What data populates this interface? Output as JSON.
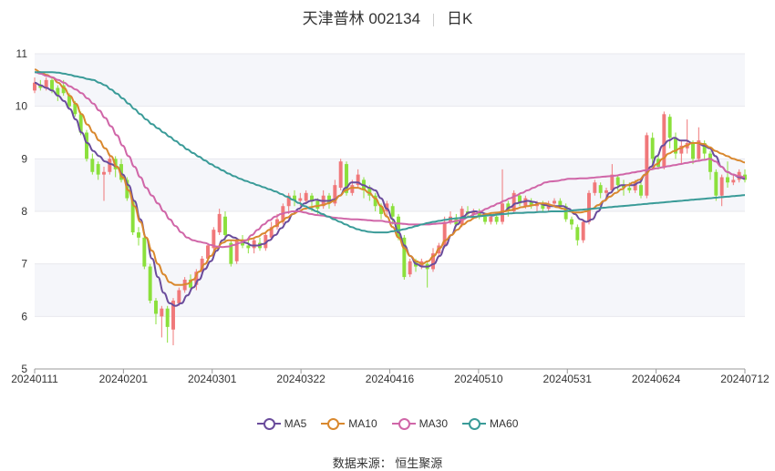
{
  "title": {
    "name": "天津普林 002134",
    "period": "日K"
  },
  "source": "数据来源： 恒生聚源",
  "colors": {
    "up": "#f0787a",
    "down": "#8be03c",
    "grid": "#e8e8ee",
    "band": "#f5f6fa"
  },
  "chart_data": {
    "type": "candlestick",
    "x_tick_labels": [
      "20240111",
      "20240201",
      "20240301",
      "20240322",
      "20240416",
      "20240510",
      "20240531",
      "20240624",
      "20240712"
    ],
    "y_tick_labels": [
      "5",
      "6",
      "7",
      "8",
      "9",
      "10",
      "11"
    ],
    "ylim": [
      5,
      11
    ],
    "grid": true,
    "legend_position": "bottom",
    "candles": [
      [
        10.3,
        10.45,
        10.55,
        10.25
      ],
      [
        10.4,
        10.35,
        10.5,
        10.3
      ],
      [
        10.35,
        10.5,
        10.55,
        10.3
      ],
      [
        10.5,
        10.3,
        10.55,
        10.25
      ],
      [
        10.35,
        10.2,
        10.4,
        10.1
      ],
      [
        10.4,
        10.25,
        10.5,
        10.2
      ],
      [
        10.2,
        10.0,
        10.25,
        9.95
      ],
      [
        10.05,
        9.85,
        10.1,
        9.8
      ],
      [
        9.85,
        9.5,
        9.9,
        9.45
      ],
      [
        9.5,
        9.0,
        9.55,
        8.95
      ],
      [
        9.0,
        8.75,
        9.1,
        8.7
      ],
      [
        8.9,
        8.7,
        8.95,
        8.6
      ],
      [
        8.7,
        8.75,
        8.85,
        8.2
      ],
      [
        8.75,
        9.0,
        9.1,
        8.7
      ],
      [
        9.0,
        8.8,
        9.05,
        8.65
      ],
      [
        8.9,
        8.6,
        9.0,
        8.55
      ],
      [
        8.6,
        8.25,
        8.65,
        8.2
      ],
      [
        8.2,
        7.6,
        8.25,
        7.55
      ],
      [
        7.6,
        7.5,
        7.7,
        7.35
      ],
      [
        7.5,
        6.95,
        7.55,
        6.9
      ],
      [
        6.95,
        6.3,
        7.0,
        6.25
      ],
      [
        6.3,
        6.05,
        6.35,
        5.85
      ],
      [
        6.0,
        6.15,
        6.2,
        5.6
      ],
      [
        6.15,
        5.8,
        6.2,
        5.5
      ],
      [
        5.75,
        6.3,
        6.35,
        5.45
      ],
      [
        6.25,
        6.5,
        6.55,
        6.2
      ],
      [
        6.5,
        6.7,
        6.75,
        6.45
      ],
      [
        6.7,
        6.55,
        6.8,
        6.5
      ],
      [
        6.6,
        6.85,
        6.9,
        6.5
      ],
      [
        6.85,
        7.1,
        7.15,
        6.8
      ],
      [
        7.1,
        7.35,
        7.4,
        7.05
      ],
      [
        7.3,
        7.65,
        7.7,
        7.25
      ],
      [
        7.6,
        7.95,
        8.05,
        7.55
      ],
      [
        7.9,
        7.55,
        8.0,
        7.4
      ],
      [
        7.4,
        7.0,
        7.45,
        6.95
      ],
      [
        7.05,
        7.45,
        7.5,
        7.0
      ],
      [
        7.4,
        7.35,
        7.55,
        7.3
      ],
      [
        7.35,
        7.3,
        7.45,
        7.2
      ],
      [
        7.3,
        7.45,
        7.5,
        7.2
      ],
      [
        7.4,
        7.3,
        7.5,
        7.25
      ],
      [
        7.3,
        7.55,
        7.6,
        7.25
      ],
      [
        7.5,
        7.7,
        7.8,
        7.45
      ],
      [
        7.7,
        7.85,
        7.95,
        7.65
      ],
      [
        7.8,
        8.1,
        8.15,
        7.75
      ],
      [
        8.1,
        8.3,
        8.35,
        7.95
      ],
      [
        8.3,
        8.2,
        8.4,
        8.1
      ],
      [
        8.2,
        8.25,
        8.35,
        8.1
      ],
      [
        8.2,
        8.35,
        8.4,
        8.15
      ],
      [
        8.3,
        8.2,
        8.35,
        8.0
      ],
      [
        8.2,
        8.05,
        8.25,
        7.95
      ],
      [
        8.1,
        8.3,
        8.4,
        8.05
      ],
      [
        8.3,
        8.15,
        8.35,
        8.05
      ],
      [
        8.15,
        8.5,
        8.6,
        8.1
      ],
      [
        8.45,
        8.95,
        9.0,
        8.4
      ],
      [
        8.9,
        8.35,
        8.95,
        8.3
      ],
      [
        8.35,
        8.5,
        8.6,
        8.3
      ],
      [
        8.5,
        8.7,
        8.8,
        8.45
      ],
      [
        8.6,
        8.4,
        8.65,
        8.25
      ],
      [
        8.45,
        8.3,
        8.5,
        8.2
      ],
      [
        8.3,
        8.1,
        8.35,
        8.0
      ],
      [
        8.1,
        7.95,
        8.15,
        7.85
      ],
      [
        8.0,
        8.15,
        8.2,
        7.9
      ],
      [
        8.1,
        7.9,
        8.15,
        7.75
      ],
      [
        7.9,
        7.5,
        7.95,
        7.45
      ],
      [
        7.5,
        6.75,
        7.55,
        6.7
      ],
      [
        6.8,
        7.05,
        7.1,
        6.75
      ],
      [
        7.05,
        6.95,
        7.1,
        6.85
      ],
      [
        6.95,
        7.05,
        7.1,
        6.9
      ],
      [
        7.0,
        6.9,
        7.05,
        6.55
      ],
      [
        6.9,
        7.2,
        7.3,
        6.85
      ],
      [
        7.2,
        7.35,
        7.4,
        7.15
      ],
      [
        7.35,
        7.8,
        7.9,
        7.3
      ],
      [
        7.8,
        7.9,
        8.0,
        7.75
      ],
      [
        7.85,
        7.75,
        7.95,
        7.7
      ],
      [
        7.75,
        8.05,
        8.1,
        7.7
      ],
      [
        8.0,
        7.95,
        8.1,
        7.9
      ],
      [
        7.95,
        8.0,
        8.05,
        7.85
      ],
      [
        8.0,
        7.9,
        8.05,
        7.85
      ],
      [
        7.9,
        7.8,
        7.95,
        7.75
      ],
      [
        7.8,
        7.9,
        7.95,
        7.75
      ],
      [
        7.9,
        7.8,
        7.95,
        7.75
      ],
      [
        7.8,
        8.15,
        8.8,
        7.75
      ],
      [
        8.15,
        8.0,
        8.2,
        7.9
      ],
      [
        8.0,
        8.35,
        8.4,
        7.95
      ],
      [
        8.3,
        8.15,
        8.35,
        8.1
      ],
      [
        8.1,
        8.25,
        8.3,
        8.05
      ],
      [
        8.2,
        8.1,
        8.25,
        8.05
      ],
      [
        8.1,
        8.15,
        8.2,
        8.0
      ],
      [
        8.15,
        8.05,
        8.2,
        8.0
      ],
      [
        8.05,
        8.15,
        8.2,
        8.0
      ],
      [
        8.15,
        8.2,
        8.25,
        8.1
      ],
      [
        8.2,
        8.1,
        8.25,
        8.05
      ],
      [
        8.1,
        7.85,
        8.15,
        7.8
      ],
      [
        7.85,
        7.75,
        7.9,
        7.65
      ],
      [
        7.7,
        7.45,
        7.75,
        7.35
      ],
      [
        7.45,
        7.8,
        7.85,
        7.4
      ],
      [
        7.8,
        8.35,
        8.4,
        7.75
      ],
      [
        8.35,
        8.55,
        8.6,
        8.3
      ],
      [
        8.5,
        8.35,
        8.55,
        8.25
      ],
      [
        8.35,
        8.4,
        8.45,
        8.2
      ],
      [
        8.4,
        8.7,
        8.9,
        8.35
      ],
      [
        8.65,
        8.5,
        8.7,
        8.4
      ],
      [
        8.5,
        8.45,
        8.6,
        8.3
      ],
      [
        8.45,
        8.4,
        8.55,
        8.35
      ],
      [
        8.4,
        8.55,
        8.6,
        8.35
      ],
      [
        8.5,
        8.3,
        8.55,
        8.25
      ],
      [
        8.3,
        9.45,
        9.5,
        8.25
      ],
      [
        9.4,
        9.0,
        9.5,
        8.9
      ],
      [
        9.0,
        8.85,
        9.1,
        8.8
      ],
      [
        8.85,
        9.85,
        9.9,
        8.8
      ],
      [
        9.8,
        9.4,
        9.85,
        9.2
      ],
      [
        9.4,
        9.1,
        9.5,
        9.0
      ],
      [
        9.1,
        9.25,
        9.35,
        8.9
      ],
      [
        9.2,
        9.3,
        9.75,
        9.1
      ],
      [
        9.3,
        9.0,
        9.35,
        8.9
      ],
      [
        9.0,
        9.35,
        9.6,
        8.95
      ],
      [
        9.3,
        9.1,
        9.35,
        9.0
      ],
      [
        9.1,
        8.75,
        9.15,
        8.6
      ],
      [
        8.75,
        8.3,
        8.8,
        8.2
      ],
      [
        8.3,
        8.65,
        8.7,
        8.1
      ],
      [
        8.65,
        8.55,
        8.95,
        8.45
      ],
      [
        8.55,
        8.6,
        8.7,
        8.5
      ],
      [
        8.6,
        8.75,
        8.8,
        8.55
      ],
      [
        8.7,
        8.6,
        8.8,
        8.55
      ]
    ],
    "series": [
      {
        "name": "MA5",
        "color": "#6a4c9c",
        "values": [
          10.45,
          10.4,
          10.35,
          10.3,
          10.2,
          10.1,
          9.95,
          9.75,
          9.5,
          9.3,
          9.15,
          9.05,
          8.95,
          8.9,
          8.85,
          8.7,
          8.5,
          8.2,
          7.85,
          7.5,
          7.1,
          6.75,
          6.45,
          6.25,
          6.2,
          6.25,
          6.4,
          6.55,
          6.7,
          6.9,
          7.05,
          7.25,
          7.45,
          7.55,
          7.5,
          7.45,
          7.4,
          7.35,
          7.35,
          7.38,
          7.45,
          7.55,
          7.68,
          7.8,
          7.95,
          8.05,
          8.15,
          8.2,
          8.22,
          8.2,
          8.2,
          8.22,
          8.3,
          8.45,
          8.55,
          8.55,
          8.5,
          8.45,
          8.4,
          8.25,
          8.05,
          7.85,
          7.6,
          7.35,
          7.15,
          7.0,
          6.95,
          6.95,
          7.0,
          7.15,
          7.35,
          7.55,
          7.75,
          7.9,
          7.98,
          8.0,
          7.98,
          7.95,
          7.92,
          7.95,
          8.0,
          8.08,
          8.15,
          8.18,
          8.2,
          8.18,
          8.15,
          8.12,
          8.1,
          8.1,
          8.1,
          8.05,
          7.95,
          7.85,
          7.8,
          7.85,
          8.0,
          8.2,
          8.35,
          8.45,
          8.5,
          8.5,
          8.5,
          8.55,
          8.7,
          8.85,
          9.05,
          9.25,
          9.35,
          9.4,
          9.35,
          9.35,
          9.3,
          9.3,
          9.25,
          9.2,
          9.05,
          8.85,
          8.75,
          8.7,
          8.65,
          8.62
        ]
      },
      {
        "name": "MA10",
        "color": "#d9882e",
        "values": [
          10.7,
          10.65,
          10.6,
          10.55,
          10.45,
          10.35,
          10.2,
          10.05,
          9.85,
          9.65,
          9.5,
          9.35,
          9.2,
          9.05,
          8.85,
          8.65,
          8.4,
          8.1,
          7.8,
          7.5,
          7.25,
          7.0,
          6.8,
          6.65,
          6.6,
          6.6,
          6.62,
          6.7,
          6.85,
          7.0,
          7.15,
          7.3,
          7.4,
          7.45,
          7.45,
          7.45,
          7.45,
          7.48,
          7.52,
          7.58,
          7.65,
          7.72,
          7.8,
          7.88,
          7.95,
          8.0,
          8.05,
          8.08,
          8.1,
          8.12,
          8.15,
          8.2,
          8.3,
          8.4,
          8.45,
          8.45,
          8.42,
          8.35,
          8.25,
          8.1,
          7.9,
          7.7,
          7.5,
          7.3,
          7.15,
          7.05,
          7.0,
          7.05,
          7.15,
          7.3,
          7.45,
          7.55,
          7.65,
          7.75,
          7.82,
          7.88,
          7.92,
          7.95,
          7.97,
          7.98,
          8.0,
          8.02,
          8.05,
          8.08,
          8.1,
          8.12,
          8.15,
          8.15,
          8.12,
          8.08,
          8.05,
          8.0,
          7.98,
          7.98,
          8.0,
          8.05,
          8.12,
          8.2,
          8.28,
          8.35,
          8.42,
          8.5,
          8.55,
          8.6,
          8.7,
          8.8,
          8.9,
          9.0,
          9.1,
          9.15,
          9.2,
          9.25,
          9.3,
          9.3,
          9.28,
          9.22,
          9.15,
          9.1,
          9.05,
          9.0,
          8.97,
          8.93
        ]
      },
      {
        "name": "MA30",
        "color": "#d066a8",
        "values": [
          10.65,
          10.62,
          10.58,
          10.55,
          10.5,
          10.45,
          10.38,
          10.32,
          10.25,
          10.15,
          10.05,
          9.92,
          9.78,
          9.62,
          9.45,
          9.25,
          9.05,
          8.85,
          8.65,
          8.45,
          8.3,
          8.15,
          8.0,
          7.85,
          7.72,
          7.6,
          7.5,
          7.45,
          7.42,
          7.4,
          7.36,
          7.33,
          7.32,
          7.33,
          7.36,
          7.4,
          7.45,
          7.55,
          7.65,
          7.75,
          7.83,
          7.9,
          7.95,
          7.98,
          8.0,
          8.0,
          7.98,
          7.95,
          7.93,
          7.92,
          7.9,
          7.88,
          7.87,
          7.86,
          7.85,
          7.85,
          7.84,
          7.83,
          7.82,
          7.82,
          7.8,
          7.78,
          7.77,
          7.76,
          7.75,
          7.75,
          7.75,
          7.75,
          7.76,
          7.77,
          7.78,
          7.8,
          7.82,
          7.85,
          7.9,
          7.95,
          8.0,
          8.05,
          8.1,
          8.15,
          8.2,
          8.25,
          8.3,
          8.35,
          8.4,
          8.45,
          8.5,
          8.55,
          8.57,
          8.58,
          8.6,
          8.62,
          8.62,
          8.63,
          8.63,
          8.64,
          8.65,
          8.66,
          8.67,
          8.68,
          8.7,
          8.72,
          8.74,
          8.76,
          8.78,
          8.8,
          8.82,
          8.84,
          8.86,
          8.88,
          8.9,
          8.92,
          8.94,
          8.96,
          8.98,
          9.0,
          8.95,
          8.85,
          8.75,
          8.7,
          8.67,
          8.65
        ]
      },
      {
        "name": "MA60",
        "color": "#3a9b98",
        "values": [
          10.65,
          10.65,
          10.65,
          10.65,
          10.64,
          10.62,
          10.6,
          10.57,
          10.55,
          10.52,
          10.5,
          10.45,
          10.4,
          10.32,
          10.24,
          10.15,
          10.05,
          9.95,
          9.85,
          9.75,
          9.66,
          9.58,
          9.5,
          9.42,
          9.34,
          9.26,
          9.18,
          9.11,
          9.04,
          8.97,
          8.9,
          8.84,
          8.78,
          8.72,
          8.67,
          8.62,
          8.58,
          8.54,
          8.5,
          8.46,
          8.42,
          8.38,
          8.33,
          8.28,
          8.22,
          8.16,
          8.1,
          8.05,
          8.0,
          7.95,
          7.9,
          7.85,
          7.8,
          7.75,
          7.7,
          7.66,
          7.63,
          7.61,
          7.6,
          7.6,
          7.6,
          7.62,
          7.64,
          7.66,
          7.69,
          7.72,
          7.75,
          7.78,
          7.8,
          7.82,
          7.84,
          7.86,
          7.87,
          7.88,
          7.89,
          7.9,
          7.91,
          7.92,
          7.93,
          7.94,
          7.95,
          7.96,
          7.97,
          7.97,
          7.98,
          7.98,
          7.99,
          7.99,
          8.0,
          8.0,
          8.0,
          8.01,
          8.02,
          8.03,
          8.04,
          8.05,
          8.06,
          8.07,
          8.08,
          8.09,
          8.1,
          8.11,
          8.12,
          8.13,
          8.14,
          8.15,
          8.16,
          8.17,
          8.18,
          8.19,
          8.2,
          8.21,
          8.22,
          8.23,
          8.24,
          8.25,
          8.26,
          8.27,
          8.28,
          8.29,
          8.3,
          8.31
        ]
      }
    ]
  }
}
